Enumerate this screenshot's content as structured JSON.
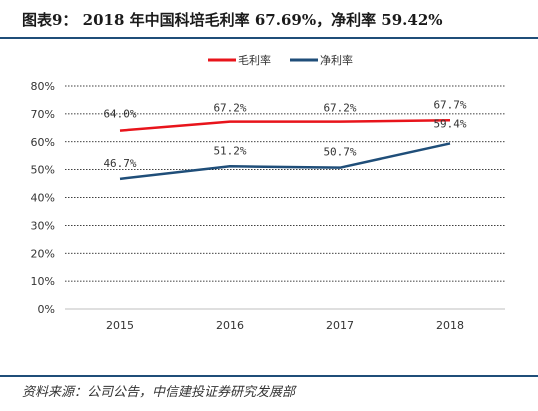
{
  "title": "图表9：  2018 年中国科培毛利率 67.69%，净利率 59.42%",
  "source": "资料来源：公司公告，中信建投证券研究发展部",
  "chart_data": {
    "type": "line",
    "categories": [
      "2015",
      "2016",
      "2017",
      "2018"
    ],
    "series": [
      {
        "name": "毛利率",
        "color": "#e8141b",
        "values": [
          64.0,
          67.2,
          67.2,
          67.7
        ],
        "labels": [
          "64.0%",
          "67.2%",
          "67.2%",
          "67.7%"
        ]
      },
      {
        "name": "净利率",
        "color": "#1f4e79",
        "values": [
          46.7,
          51.2,
          50.7,
          59.4
        ],
        "labels": [
          "46.7%",
          "51.2%",
          "50.7%",
          "59.4%"
        ]
      }
    ],
    "yticks": [
      "0%",
      "10%",
      "20%",
      "30%",
      "40%",
      "50%",
      "60%",
      "70%",
      "80%"
    ],
    "ylim": [
      0,
      80
    ],
    "grid": true,
    "legend_position": "top-center"
  }
}
